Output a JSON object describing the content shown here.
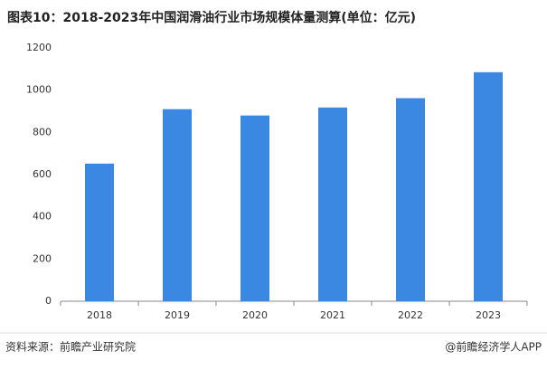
{
  "chart_data": {
    "type": "bar",
    "title": "图表10：2018-2023年中国润滑油行业市场规模体量测算(单位：亿元)",
    "categories": [
      "2018",
      "2019",
      "2020",
      "2021",
      "2022",
      "2023"
    ],
    "values": [
      652,
      910,
      880,
      918,
      962,
      1085
    ],
    "color": "#3b88e3",
    "ylim": [
      0,
      1200
    ],
    "yticks": [
      0,
      200,
      400,
      600,
      800,
      1000,
      1200
    ],
    "grid": false,
    "source": "资料来源：前瞻产业研究院",
    "credit": "@前瞻经济学人APP"
  }
}
